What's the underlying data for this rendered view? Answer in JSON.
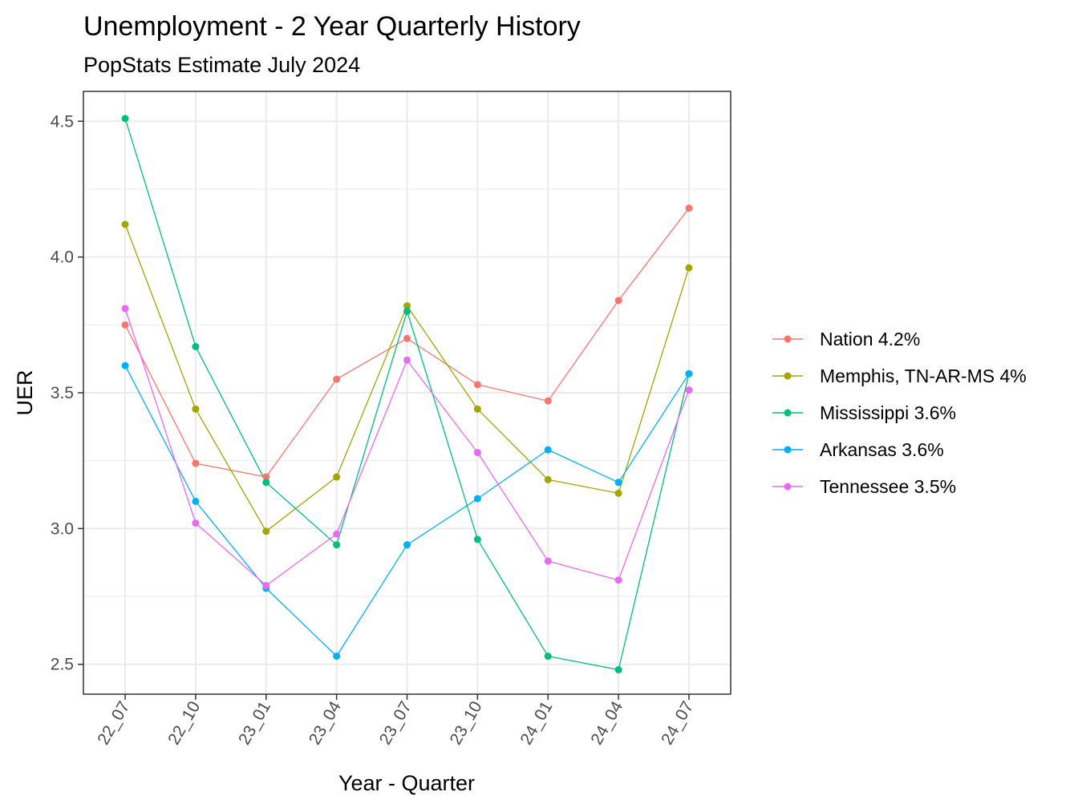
{
  "chart_data": {
    "type": "line",
    "title": "Unemployment - 2 Year Quarterly History",
    "subtitle": "PopStats Estimate July 2024",
    "xlabel": "Year - Quarter",
    "ylabel": "UER",
    "categories": [
      "22_07",
      "22_10",
      "23_01",
      "23_04",
      "23_07",
      "23_10",
      "24_01",
      "24_04",
      "24_07"
    ],
    "yticks": [
      "2.5",
      "3.0",
      "3.5",
      "4.0",
      "4.5"
    ],
    "ylim": [
      2.39,
      4.61
    ],
    "grid": true,
    "legend_position": "right",
    "series": [
      {
        "name": "Nation 4.2%",
        "color": "#F8766D",
        "values": [
          3.75,
          3.24,
          3.19,
          3.55,
          3.7,
          3.53,
          3.47,
          3.84,
          4.18
        ]
      },
      {
        "name": "Memphis, TN-AR-MS 4%",
        "color": "#A3A500",
        "values": [
          4.12,
          3.44,
          2.99,
          3.19,
          3.82,
          3.44,
          3.18,
          3.13,
          3.96
        ]
      },
      {
        "name": "Mississippi 3.6%",
        "color": "#00BF7D",
        "values": [
          4.51,
          3.67,
          3.17,
          2.94,
          3.8,
          2.96,
          2.53,
          2.48,
          3.57
        ]
      },
      {
        "name": "Arkansas 3.6%",
        "color": "#00B0F6",
        "values": [
          3.6,
          3.1,
          2.78,
          2.53,
          2.94,
          3.11,
          3.29,
          3.17,
          3.57
        ]
      },
      {
        "name": "Tennessee 3.5%",
        "color": "#E76BF3",
        "values": [
          3.81,
          3.02,
          2.79,
          2.98,
          3.62,
          3.28,
          2.88,
          2.81,
          3.51
        ]
      }
    ]
  }
}
